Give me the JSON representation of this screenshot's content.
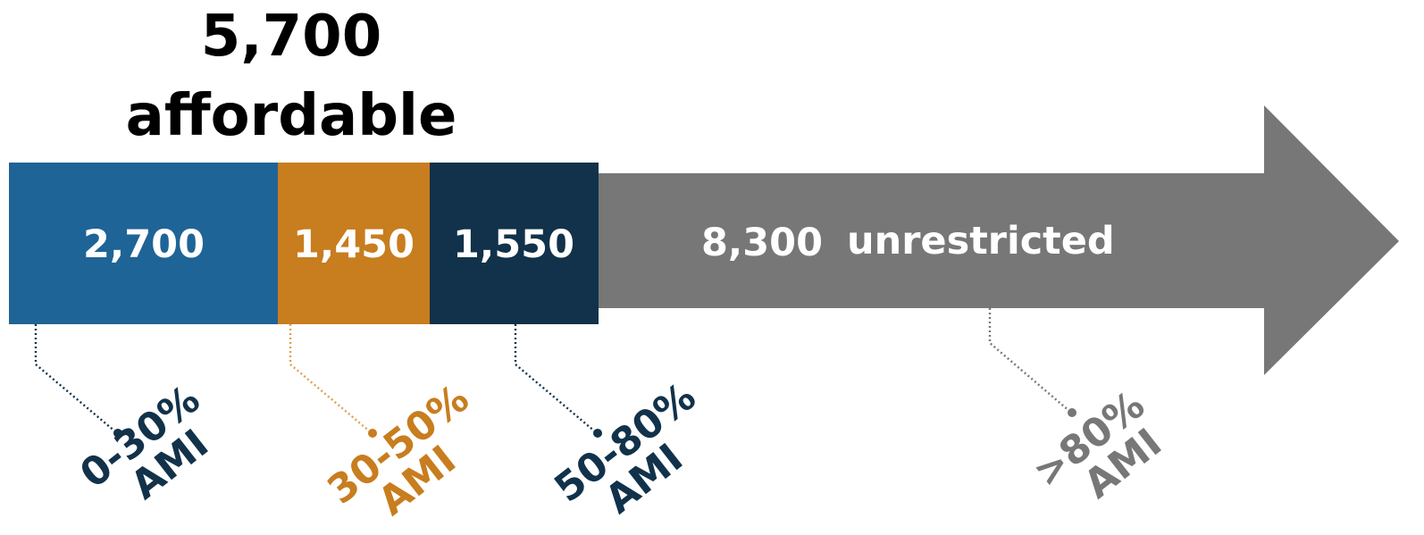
{
  "chart_data": {
    "type": "bar",
    "title": "",
    "total": {
      "value": "5,700",
      "label": "affordable"
    },
    "segments": [
      {
        "category": "0-30% AMI",
        "line1": "0-30%",
        "line2": "AMI",
        "value": 2700,
        "display": "2,700",
        "color": "#1f6496",
        "label_color": "#12324a"
      },
      {
        "category": "30-50% AMI",
        "line1": "30-50%",
        "line2": "AMI",
        "value": 1450,
        "display": "1,450",
        "color": "#c87d1e",
        "label_color": "#c87d1e"
      },
      {
        "category": "50-80% AMI",
        "line1": "50-80%",
        "line2": "AMI",
        "value": 1550,
        "display": "1,550",
        "color": "#11324a",
        "label_color": "#11324a"
      },
      {
        "category": ">80% AMI",
        "line1": ">80%",
        "line2": "AMI",
        "value": 8300,
        "display": "8,300",
        "extra": "unrestricted",
        "color": "#777777",
        "label_color": "#777777"
      }
    ]
  }
}
